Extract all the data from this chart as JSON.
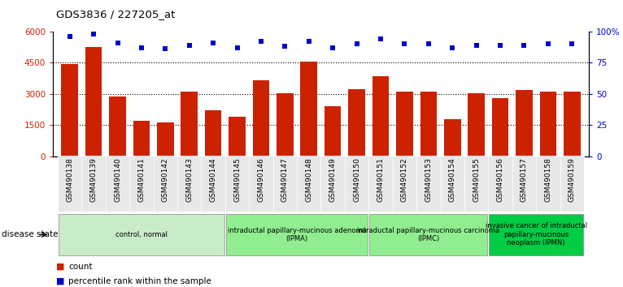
{
  "title": "GDS3836 / 227205_at",
  "samples": [
    "GSM490138",
    "GSM490139",
    "GSM490140",
    "GSM490141",
    "GSM490142",
    "GSM490143",
    "GSM490144",
    "GSM490145",
    "GSM490146",
    "GSM490147",
    "GSM490148",
    "GSM490149",
    "GSM490150",
    "GSM490151",
    "GSM490152",
    "GSM490153",
    "GSM490154",
    "GSM490155",
    "GSM490156",
    "GSM490157",
    "GSM490158",
    "GSM490159"
  ],
  "counts": [
    4450,
    5250,
    2900,
    1700,
    1650,
    3100,
    2200,
    1900,
    3650,
    3050,
    4550,
    2400,
    3250,
    3850,
    3100,
    3100,
    1800,
    3050,
    2800,
    3200,
    3100,
    3100
  ],
  "percentiles": [
    96,
    98,
    91,
    87,
    86,
    89,
    91,
    87,
    92,
    88,
    92,
    87,
    90,
    94,
    90,
    90,
    87,
    89,
    89,
    89,
    90,
    90
  ],
  "bar_color": "#cc2200",
  "dot_color": "#0000cc",
  "ylim_left": [
    0,
    6000
  ],
  "ylim_right": [
    0,
    100
  ],
  "yticks_left": [
    0,
    1500,
    3000,
    4500,
    6000
  ],
  "ytick_labels_left": [
    "0",
    "1500",
    "3000",
    "4500",
    "6000"
  ],
  "yticks_right": [
    0,
    25,
    50,
    75,
    100
  ],
  "ytick_labels_right": [
    "0",
    "25",
    "50",
    "75",
    "100%"
  ],
  "grid_values": [
    1500,
    3000,
    4500
  ],
  "disease_groups": [
    {
      "label": "control, normal",
      "start": 0,
      "end": 7,
      "color": "#c8ecc8"
    },
    {
      "label": "intraductal papillary-mucinous adenoma\n(IPMA)",
      "start": 7,
      "end": 13,
      "color": "#90ee90"
    },
    {
      "label": "intraductal papillary-mucinous carcinoma\n(IPMC)",
      "start": 13,
      "end": 18,
      "color": "#90ee90"
    },
    {
      "label": "invasive cancer of intraductal\npapillary-mucinous\nneoplasm (IPMN)",
      "start": 18,
      "end": 22,
      "color": "#00cc44"
    }
  ],
  "legend_count_label": "count",
  "legend_percentile_label": "percentile rank within the sample",
  "disease_state_label": "disease state",
  "bg_color": "#e8e8e8",
  "fig_bg": "#ffffff"
}
